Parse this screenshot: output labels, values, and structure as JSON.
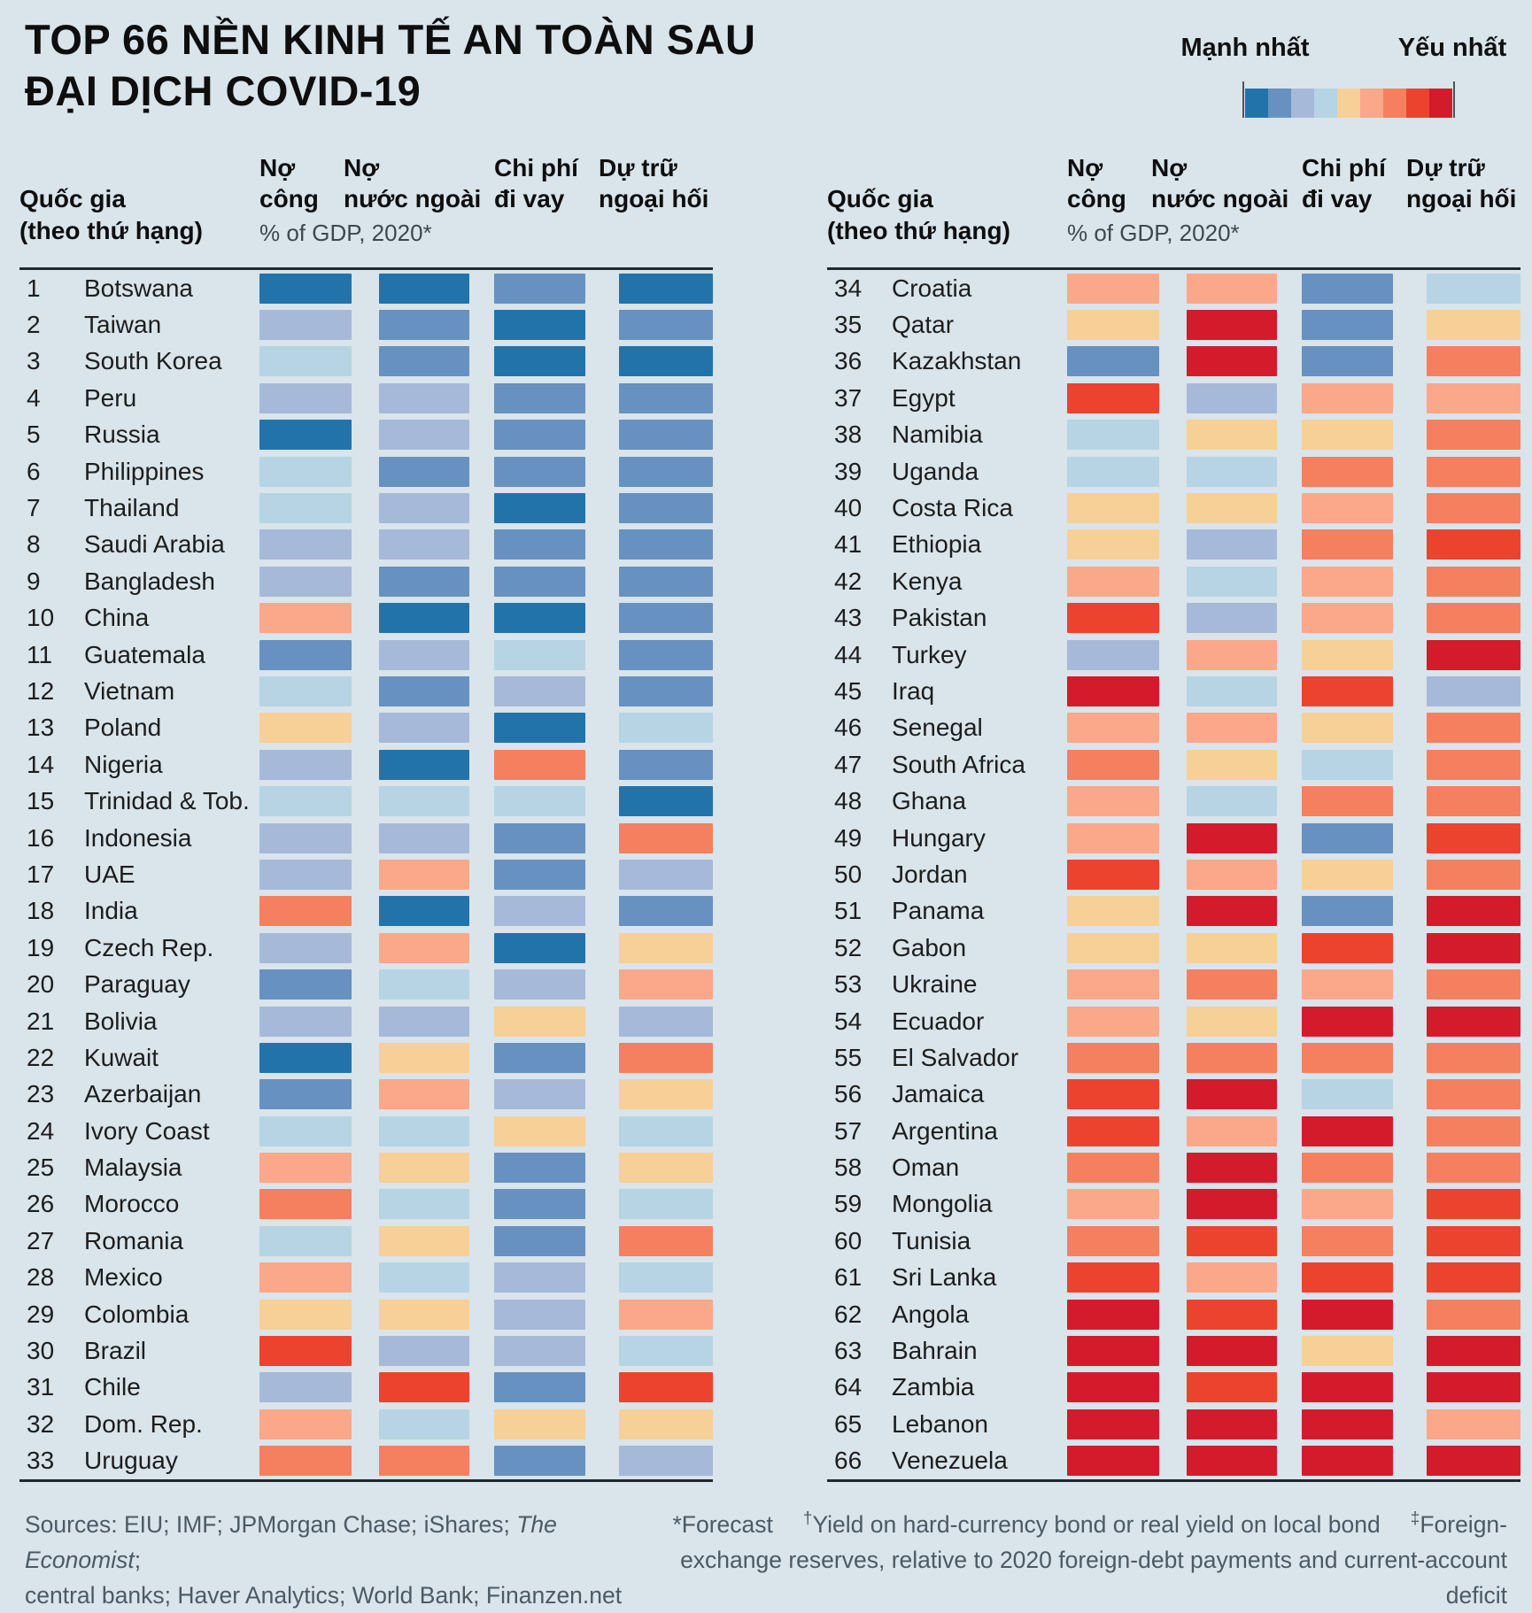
{
  "title": {
    "line1": "TOP 66 NỀN KINH TẾ AN TOÀN SAU",
    "line2": "ĐẠI DỊCH COVID-19"
  },
  "legend": {
    "strongest_label": "Mạnh nhất",
    "weakest_label": "Yếu nhất",
    "order": [
      "b1",
      "b2",
      "b3",
      "b4",
      "o1",
      "o2",
      "o3",
      "r1",
      "r2"
    ]
  },
  "palette": {
    "b1": "#2373ab",
    "b2": "#6791c0",
    "b3": "#a6b9d8",
    "b4": "#b6d4e3",
    "o1": "#f6d096",
    "o2": "#fba78a",
    "o3": "#f4805f",
    "r1": "#ec432e",
    "r2": "#d31b2c"
  },
  "columns": {
    "country": {
      "line1": "Quốc gia",
      "line2": "(theo thứ hạng)"
    },
    "metrics": [
      {
        "line1": "Nợ",
        "line2": "công"
      },
      {
        "line1": "Nợ",
        "line2": "nước ngoài"
      },
      {
        "line1": "Chi phí",
        "line2": "đi vay"
      },
      {
        "line1": "Dự trữ",
        "line2": "ngoại hối"
      }
    ],
    "unit": "% of GDP, 2020*"
  },
  "chart_data": {
    "type": "heatmap",
    "title": "TOP 66 NỀN KINH TẾ AN TOÀN SAU ĐẠI DỊCH COVID-19",
    "unit": "% of GDP, 2020*",
    "metrics": [
      "Nợ công",
      "Nợ nước ngoài",
      "Chi phí đi vay",
      "Dự trữ ngoại hối"
    ],
    "scale": {
      "strongest_label": "Mạnh nhất",
      "weakest_label": "Yếu nhất",
      "levels": [
        {
          "code": "b1",
          "strength": 1,
          "color": "#2373ab"
        },
        {
          "code": "b2",
          "strength": 2,
          "color": "#6791c0"
        },
        {
          "code": "b3",
          "strength": 3,
          "color": "#a6b9d8"
        },
        {
          "code": "b4",
          "strength": 4,
          "color": "#b6d4e3"
        },
        {
          "code": "o1",
          "strength": 5,
          "color": "#f6d096"
        },
        {
          "code": "o2",
          "strength": 6,
          "color": "#fba78a"
        },
        {
          "code": "o3",
          "strength": 7,
          "color": "#f4805f"
        },
        {
          "code": "r1",
          "strength": 8,
          "color": "#ec432e"
        },
        {
          "code": "r2",
          "strength": 9,
          "color": "#d31b2c"
        }
      ]
    },
    "rows": [
      {
        "rank": 1,
        "country": "Botswana",
        "cells": [
          "b1",
          "b1",
          "b2",
          "b1"
        ]
      },
      {
        "rank": 2,
        "country": "Taiwan",
        "cells": [
          "b3",
          "b2",
          "b1",
          "b2"
        ]
      },
      {
        "rank": 3,
        "country": "South Korea",
        "cells": [
          "b4",
          "b2",
          "b1",
          "b1"
        ]
      },
      {
        "rank": 4,
        "country": "Peru",
        "cells": [
          "b3",
          "b3",
          "b2",
          "b2"
        ]
      },
      {
        "rank": 5,
        "country": "Russia",
        "cells": [
          "b1",
          "b3",
          "b2",
          "b2"
        ]
      },
      {
        "rank": 6,
        "country": "Philippines",
        "cells": [
          "b4",
          "b2",
          "b2",
          "b2"
        ]
      },
      {
        "rank": 7,
        "country": "Thailand",
        "cells": [
          "b4",
          "b3",
          "b1",
          "b2"
        ]
      },
      {
        "rank": 8,
        "country": "Saudi Arabia",
        "cells": [
          "b3",
          "b3",
          "b2",
          "b2"
        ]
      },
      {
        "rank": 9,
        "country": "Bangladesh",
        "cells": [
          "b3",
          "b2",
          "b2",
          "b2"
        ]
      },
      {
        "rank": 10,
        "country": "China",
        "cells": [
          "o2",
          "b1",
          "b1",
          "b2"
        ]
      },
      {
        "rank": 11,
        "country": "Guatemala",
        "cells": [
          "b2",
          "b3",
          "b4",
          "b2"
        ]
      },
      {
        "rank": 12,
        "country": "Vietnam",
        "cells": [
          "b4",
          "b2",
          "b3",
          "b2"
        ]
      },
      {
        "rank": 13,
        "country": "Poland",
        "cells": [
          "o1",
          "b3",
          "b1",
          "b4"
        ]
      },
      {
        "rank": 14,
        "country": "Nigeria",
        "cells": [
          "b3",
          "b1",
          "o3",
          "b2"
        ]
      },
      {
        "rank": 15,
        "country": "Trinidad & Tob.",
        "cells": [
          "b4",
          "b4",
          "b4",
          "b1"
        ]
      },
      {
        "rank": 16,
        "country": "Indonesia",
        "cells": [
          "b3",
          "b3",
          "b2",
          "o3"
        ]
      },
      {
        "rank": 17,
        "country": "UAE",
        "cells": [
          "b3",
          "o2",
          "b2",
          "b3"
        ]
      },
      {
        "rank": 18,
        "country": "India",
        "cells": [
          "o3",
          "b1",
          "b3",
          "b2"
        ]
      },
      {
        "rank": 19,
        "country": "Czech Rep.",
        "cells": [
          "b3",
          "o2",
          "b1",
          "o1"
        ]
      },
      {
        "rank": 20,
        "country": "Paraguay",
        "cells": [
          "b2",
          "b4",
          "b3",
          "o2"
        ]
      },
      {
        "rank": 21,
        "country": "Bolivia",
        "cells": [
          "b3",
          "b3",
          "o1",
          "b3"
        ]
      },
      {
        "rank": 22,
        "country": "Kuwait",
        "cells": [
          "b1",
          "o1",
          "b2",
          "o3"
        ]
      },
      {
        "rank": 23,
        "country": "Azerbaijan",
        "cells": [
          "b2",
          "o2",
          "b3",
          "o1"
        ]
      },
      {
        "rank": 24,
        "country": "Ivory Coast",
        "cells": [
          "b4",
          "b4",
          "o1",
          "b4"
        ]
      },
      {
        "rank": 25,
        "country": "Malaysia",
        "cells": [
          "o2",
          "o1",
          "b2",
          "o1"
        ]
      },
      {
        "rank": 26,
        "country": "Morocco",
        "cells": [
          "o3",
          "b4",
          "b2",
          "b4"
        ]
      },
      {
        "rank": 27,
        "country": "Romania",
        "cells": [
          "b4",
          "o1",
          "b2",
          "o3"
        ]
      },
      {
        "rank": 28,
        "country": "Mexico",
        "cells": [
          "o2",
          "b4",
          "b3",
          "b4"
        ]
      },
      {
        "rank": 29,
        "country": "Colombia",
        "cells": [
          "o1",
          "o1",
          "b3",
          "o2"
        ]
      },
      {
        "rank": 30,
        "country": "Brazil",
        "cells": [
          "r1",
          "b3",
          "b3",
          "b4"
        ]
      },
      {
        "rank": 31,
        "country": "Chile",
        "cells": [
          "b3",
          "r1",
          "b2",
          "r1"
        ]
      },
      {
        "rank": 32,
        "country": "Dom. Rep.",
        "cells": [
          "o2",
          "b4",
          "o1",
          "o1"
        ]
      },
      {
        "rank": 33,
        "country": "Uruguay",
        "cells": [
          "o3",
          "o3",
          "b2",
          "b3"
        ]
      },
      {
        "rank": 34,
        "country": "Croatia",
        "cells": [
          "o2",
          "o2",
          "b2",
          "b4"
        ]
      },
      {
        "rank": 35,
        "country": "Qatar",
        "cells": [
          "o1",
          "r2",
          "b2",
          "o1"
        ]
      },
      {
        "rank": 36,
        "country": "Kazakhstan",
        "cells": [
          "b2",
          "r2",
          "b2",
          "o3"
        ]
      },
      {
        "rank": 37,
        "country": "Egypt",
        "cells": [
          "r1",
          "b3",
          "o2",
          "o2"
        ]
      },
      {
        "rank": 38,
        "country": "Namibia",
        "cells": [
          "b4",
          "o1",
          "o1",
          "o3"
        ]
      },
      {
        "rank": 39,
        "country": "Uganda",
        "cells": [
          "b4",
          "b4",
          "o3",
          "o3"
        ]
      },
      {
        "rank": 40,
        "country": "Costa Rica",
        "cells": [
          "o1",
          "o1",
          "o2",
          "o3"
        ]
      },
      {
        "rank": 41,
        "country": "Ethiopia",
        "cells": [
          "o1",
          "b3",
          "o3",
          "r1"
        ]
      },
      {
        "rank": 42,
        "country": "Kenya",
        "cells": [
          "o2",
          "b4",
          "o2",
          "o3"
        ]
      },
      {
        "rank": 43,
        "country": "Pakistan",
        "cells": [
          "r1",
          "b3",
          "o2",
          "o3"
        ]
      },
      {
        "rank": 44,
        "country": "Turkey",
        "cells": [
          "b3",
          "o2",
          "o1",
          "r2"
        ]
      },
      {
        "rank": 45,
        "country": "Iraq",
        "cells": [
          "r2",
          "b4",
          "r1",
          "b3"
        ]
      },
      {
        "rank": 46,
        "country": "Senegal",
        "cells": [
          "o2",
          "o2",
          "o1",
          "o3"
        ]
      },
      {
        "rank": 47,
        "country": "South Africa",
        "cells": [
          "o3",
          "o1",
          "b4",
          "o3"
        ]
      },
      {
        "rank": 48,
        "country": "Ghana",
        "cells": [
          "o2",
          "b4",
          "o3",
          "o3"
        ]
      },
      {
        "rank": 49,
        "country": "Hungary",
        "cells": [
          "o2",
          "r2",
          "b2",
          "r1"
        ]
      },
      {
        "rank": 50,
        "country": "Jordan",
        "cells": [
          "r1",
          "o2",
          "o1",
          "o3"
        ]
      },
      {
        "rank": 51,
        "country": "Panama",
        "cells": [
          "o1",
          "r2",
          "b2",
          "r2"
        ]
      },
      {
        "rank": 52,
        "country": "Gabon",
        "cells": [
          "o1",
          "o1",
          "r1",
          "r2"
        ]
      },
      {
        "rank": 53,
        "country": "Ukraine",
        "cells": [
          "o2",
          "o3",
          "o2",
          "o3"
        ]
      },
      {
        "rank": 54,
        "country": "Ecuador",
        "cells": [
          "o2",
          "o1",
          "r2",
          "r2"
        ]
      },
      {
        "rank": 55,
        "country": "El Salvador",
        "cells": [
          "o3",
          "o3",
          "o3",
          "o3"
        ]
      },
      {
        "rank": 56,
        "country": "Jamaica",
        "cells": [
          "r1",
          "r2",
          "b4",
          "o3"
        ]
      },
      {
        "rank": 57,
        "country": "Argentina",
        "cells": [
          "r1",
          "o2",
          "r2",
          "o3"
        ]
      },
      {
        "rank": 58,
        "country": "Oman",
        "cells": [
          "o3",
          "r2",
          "o3",
          "o3"
        ]
      },
      {
        "rank": 59,
        "country": "Mongolia",
        "cells": [
          "o2",
          "r2",
          "o2",
          "r1"
        ]
      },
      {
        "rank": 60,
        "country": "Tunisia",
        "cells": [
          "o3",
          "r1",
          "o3",
          "r1"
        ]
      },
      {
        "rank": 61,
        "country": "Sri Lanka",
        "cells": [
          "r1",
          "o2",
          "r1",
          "r1"
        ]
      },
      {
        "rank": 62,
        "country": "Angola",
        "cells": [
          "r2",
          "r1",
          "r2",
          "o3"
        ]
      },
      {
        "rank": 63,
        "country": "Bahrain",
        "cells": [
          "r2",
          "r2",
          "o1",
          "r2"
        ]
      },
      {
        "rank": 64,
        "country": "Zambia",
        "cells": [
          "r2",
          "r1",
          "r2",
          "r2"
        ]
      },
      {
        "rank": 65,
        "country": "Lebanon",
        "cells": [
          "r2",
          "r2",
          "r2",
          "o2"
        ]
      },
      {
        "rank": 66,
        "country": "Venezuela",
        "cells": [
          "r2",
          "r2",
          "r2",
          "r2"
        ]
      }
    ]
  },
  "footer": {
    "sources_prefix": "Sources: EIU; IMF; JPMorgan Chase; iShares; ",
    "sources_italic": "The Economist",
    "sources_suffix": ";",
    "sources_line2": "central banks; Haver Analytics; World Bank; Finanzen.net",
    "note_forecast": "*Forecast",
    "note_yield_marker": "†",
    "note_yield": "Yield on hard-currency bond or real yield on local bond",
    "note_fx_marker": "‡",
    "note_fx_start": "Foreign-",
    "note_fx_line2": "exchange reserves, relative to 2020 foreign-debt payments and current-account deficit"
  }
}
